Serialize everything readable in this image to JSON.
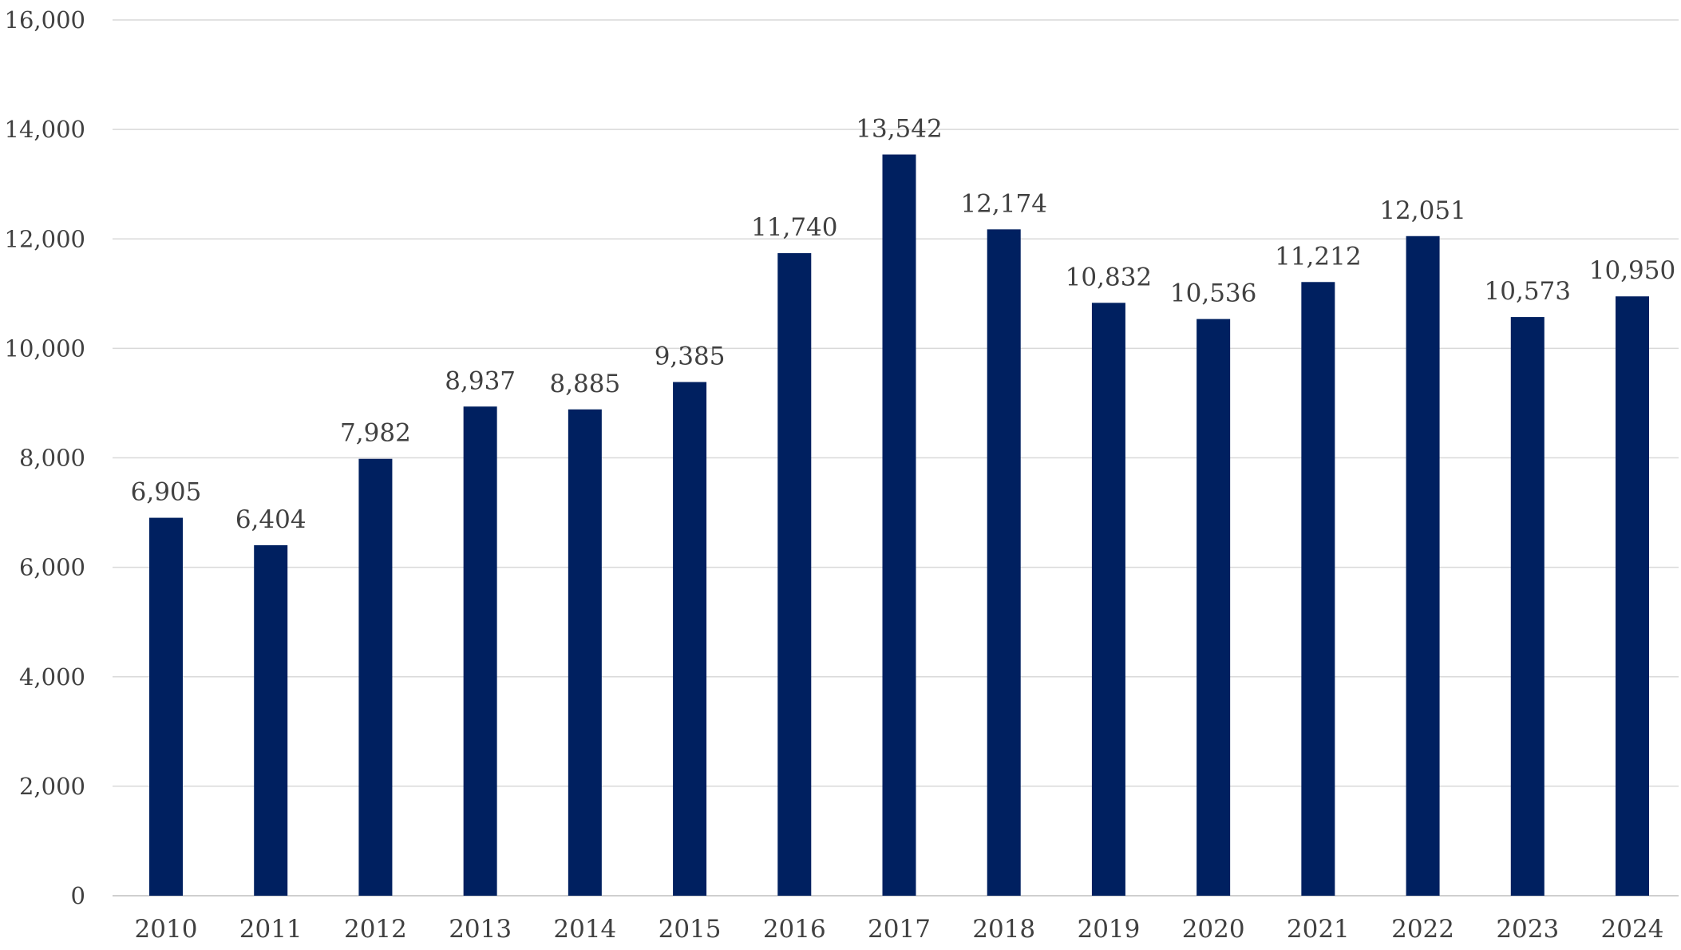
{
  "chart_data": {
    "type": "bar",
    "title": "",
    "xlabel": "",
    "ylabel": "",
    "categories": [
      "2010",
      "2011",
      "2012",
      "2013",
      "2014",
      "2015",
      "2016",
      "2017",
      "2018",
      "2019",
      "2020",
      "2021",
      "2022",
      "2023",
      "2024"
    ],
    "values": [
      6905,
      6404,
      7982,
      8937,
      8885,
      9385,
      11740,
      13542,
      12174,
      10832,
      10536,
      11212,
      12051,
      10573,
      10950
    ],
    "data_labels": [
      "6,905",
      "6,404",
      "7,982",
      "8,937",
      "8,885",
      "9,385",
      "11,740",
      "13,542",
      "12,174",
      "10,832",
      "10,536",
      "11,212",
      "12,051",
      "10,573",
      "10,950"
    ],
    "ylim": [
      0,
      16000
    ],
    "yticks": [
      0,
      2000,
      4000,
      6000,
      8000,
      10000,
      12000,
      14000,
      16000
    ],
    "ytick_labels": [
      "0",
      "2,000",
      "4,000",
      "6,000",
      "8,000",
      "10,000",
      "12,000",
      "14,000",
      "16,000"
    ],
    "grid": true,
    "legend": "none",
    "bar_color": "#002060"
  }
}
